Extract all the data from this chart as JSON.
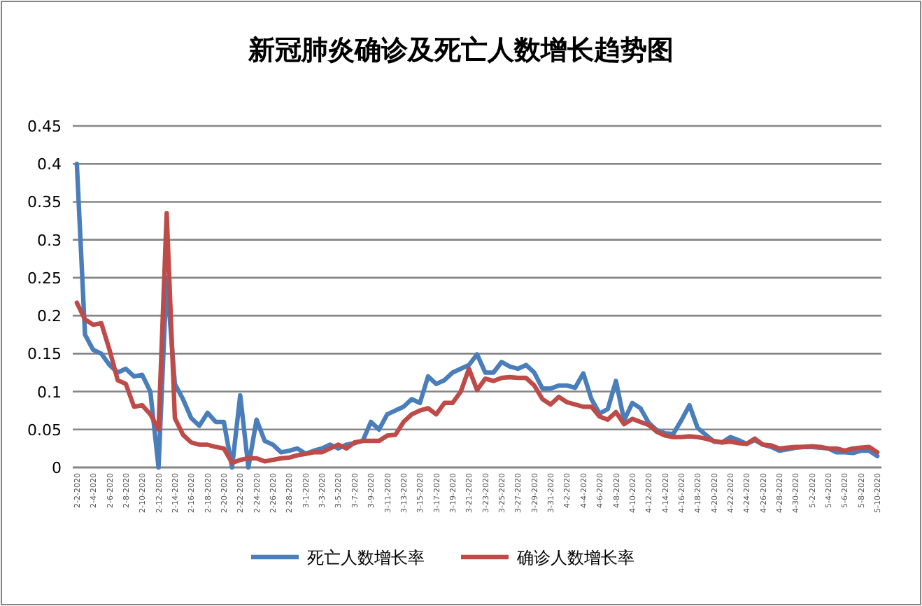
{
  "chart_data": {
    "type": "line",
    "title": "新冠肺炎确诊及死亡人数增长趋势图",
    "categories": [
      "2-2-2020",
      null,
      "2-4-2020",
      null,
      "2-6-2020",
      null,
      "2-8-2020",
      null,
      "2-10-2020",
      null,
      "2-12-2020",
      null,
      "2-14-2020",
      null,
      "2-16-2020",
      null,
      "2-18-2020",
      null,
      "2-20-2020",
      null,
      "2-22-2020",
      null,
      "2-24-2020",
      null,
      "2-26-2020",
      null,
      "2-28-2020",
      null,
      "3-1-2020",
      null,
      "3-3-2020",
      null,
      "3-5-2020",
      null,
      "3-7-2020",
      null,
      "3-9-2020",
      null,
      "3-11-2020",
      null,
      "3-13-2020",
      null,
      "3-15-2020",
      null,
      "3-17-2020",
      null,
      "3-19-2020",
      null,
      "3-21-2020",
      null,
      "3-23-2020",
      null,
      "3-25-2020",
      null,
      "3-27-2020",
      null,
      "3-29-2020",
      null,
      "3-31-2020",
      null,
      "4-2-2020",
      null,
      "4-4-2020",
      null,
      "4-6-2020",
      null,
      "4-8-2020",
      null,
      "4-10-2020",
      null,
      "4-12-2020",
      null,
      "4-14-2020",
      null,
      "4-16-2020",
      null,
      "4-18-2020",
      null,
      "4-20-2020",
      null,
      "4-22-2020",
      null,
      "4-24-2020",
      null,
      "4-26-2020",
      null,
      "4-28-2020",
      null,
      "4-30-2020",
      null,
      "5-2-2020",
      null,
      "5-4-2020",
      null,
      "5-6-2020",
      null,
      "5-8-2020",
      null,
      "5-10-2020"
    ],
    "series": [
      {
        "name": "死亡人数增长率",
        "color": "#4a7ebb",
        "values": [
          0.4,
          0.175,
          0.155,
          0.15,
          0.135,
          0.125,
          0.13,
          0.12,
          0.122,
          0.1,
          0,
          0.25,
          0.11,
          0.09,
          0.065,
          0.055,
          0.072,
          0.06,
          0.06,
          0,
          0.095,
          0,
          0.063,
          0.035,
          0.03,
          0.02,
          0.022,
          0.025,
          0.018,
          0.022,
          0.025,
          0.03,
          0.025,
          0.03,
          0.032,
          0.035,
          0.06,
          0.05,
          0.07,
          0.075,
          0.08,
          0.09,
          0.085,
          0.12,
          0.11,
          0.115,
          0.125,
          0.13,
          0.135,
          0.149,
          0.125,
          0.125,
          0.139,
          0.133,
          0.13,
          0.135,
          0.125,
          0.104,
          0.104,
          0.108,
          0.108,
          0.105,
          0.124,
          0.09,
          0.071,
          0.077,
          0.114,
          0.062,
          0.085,
          0.078,
          0.059,
          0.049,
          0.045,
          0.044,
          0.062,
          0.082,
          0.052,
          0.043,
          0.034,
          0.033,
          0.04,
          0.036,
          0.031,
          0.036,
          0.03,
          0.027,
          0.022,
          0.024,
          0.026,
          0.027,
          0.027,
          0.026,
          0.025,
          0.02,
          0.02,
          0.019,
          0.022,
          0.022,
          0.015
        ]
      },
      {
        "name": "确诊人数增长率",
        "color": "#be4b48",
        "values": [
          0.217,
          0.195,
          0.188,
          0.19,
          0.155,
          0.115,
          0.11,
          0.08,
          0.082,
          0.07,
          0.05,
          0.335,
          0.065,
          0.043,
          0.033,
          0.03,
          0.03,
          0.027,
          0.025,
          0.006,
          0.01,
          0.012,
          0.012,
          0.008,
          0.01,
          0.012,
          0.013,
          0.016,
          0.018,
          0.02,
          0.02,
          0.025,
          0.03,
          0.025,
          0.033,
          0.035,
          0.035,
          0.035,
          0.042,
          0.043,
          0.06,
          0.07,
          0.075,
          0.078,
          0.07,
          0.085,
          0.085,
          0.1,
          0.13,
          0.102,
          0.117,
          0.114,
          0.118,
          0.119,
          0.118,
          0.118,
          0.108,
          0.09,
          0.083,
          0.093,
          0.086,
          0.083,
          0.08,
          0.08,
          0.067,
          0.063,
          0.073,
          0.057,
          0.064,
          0.06,
          0.056,
          0.047,
          0.042,
          0.04,
          0.04,
          0.041,
          0.04,
          0.038,
          0.035,
          0.033,
          0.034,
          0.032,
          0.031,
          0.038,
          0.03,
          0.029,
          0.025,
          0.026,
          0.027,
          0.027,
          0.028,
          0.027,
          0.025,
          0.025,
          0.022,
          0.025,
          0.026,
          0.027,
          0.02
        ]
      }
    ],
    "ylim": [
      0,
      0.45
    ],
    "yticks": [
      0,
      0.05,
      0.1,
      0.15,
      0.2,
      0.25,
      0.3,
      0.35,
      0.4,
      0.45
    ],
    "grid": "y",
    "legend": "bottom"
  }
}
